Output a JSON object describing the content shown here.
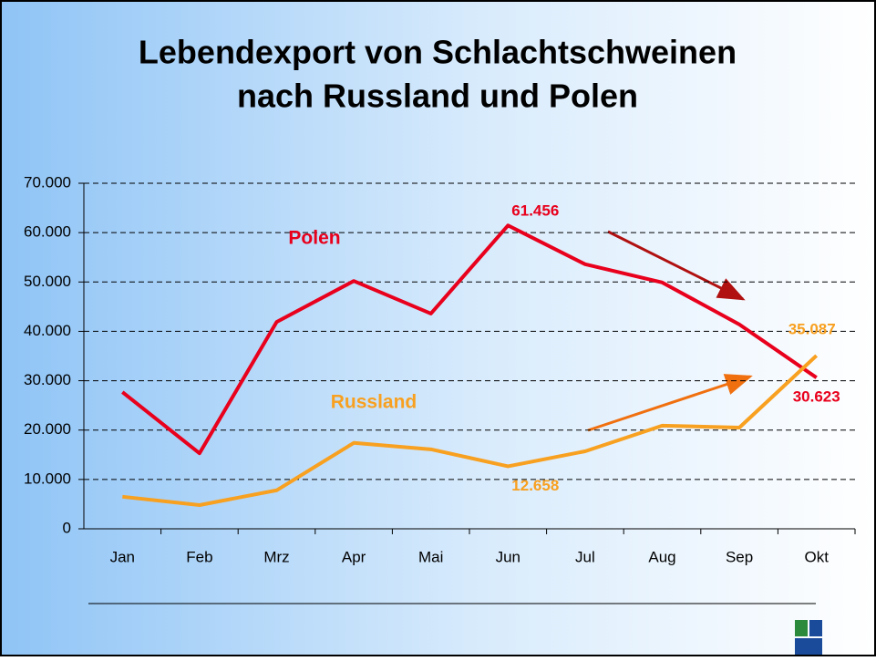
{
  "chart_data": {
    "type": "line",
    "title": [
      "Lebendexport von Schlachtschweinen",
      "nach Russland und Polen"
    ],
    "categories": [
      "Jan",
      "Feb",
      "Mrz",
      "Apr",
      "Mai",
      "Jun",
      "Jul",
      "Aug",
      "Sep",
      "Okt"
    ],
    "series": [
      {
        "name": "Polen",
        "color": "#e8001c",
        "values": [
          27700,
          15300,
          41900,
          50200,
          43600,
          61456,
          53600,
          49900,
          41400,
          30623
        ],
        "value_labels": [
          null,
          null,
          null,
          null,
          null,
          "61.456",
          null,
          null,
          null,
          "30.623"
        ]
      },
      {
        "name": "Russland",
        "color": "#f8a020",
        "values": [
          6500,
          4800,
          7800,
          17400,
          16100,
          12658,
          15700,
          20900,
          20500,
          35087
        ],
        "value_labels": [
          null,
          null,
          null,
          null,
          null,
          "12.658",
          null,
          null,
          null,
          "35.087"
        ]
      }
    ],
    "ylim": [
      0,
      70000
    ],
    "yticks": [
      0,
      {
        "value": 10000,
        "label": "10.000"
      },
      {
        "value": 20000,
        "label": "20.000"
      },
      {
        "value": 30000,
        "label": "30.000"
      },
      {
        "value": 40000,
        "label": "40.000"
      },
      {
        "value": 50000,
        "label": "50.000"
      },
      {
        "value": 60000,
        "label": "60.000"
      },
      {
        "value": 70000,
        "label": "70.000"
      }
    ],
    "grid": true
  }
}
